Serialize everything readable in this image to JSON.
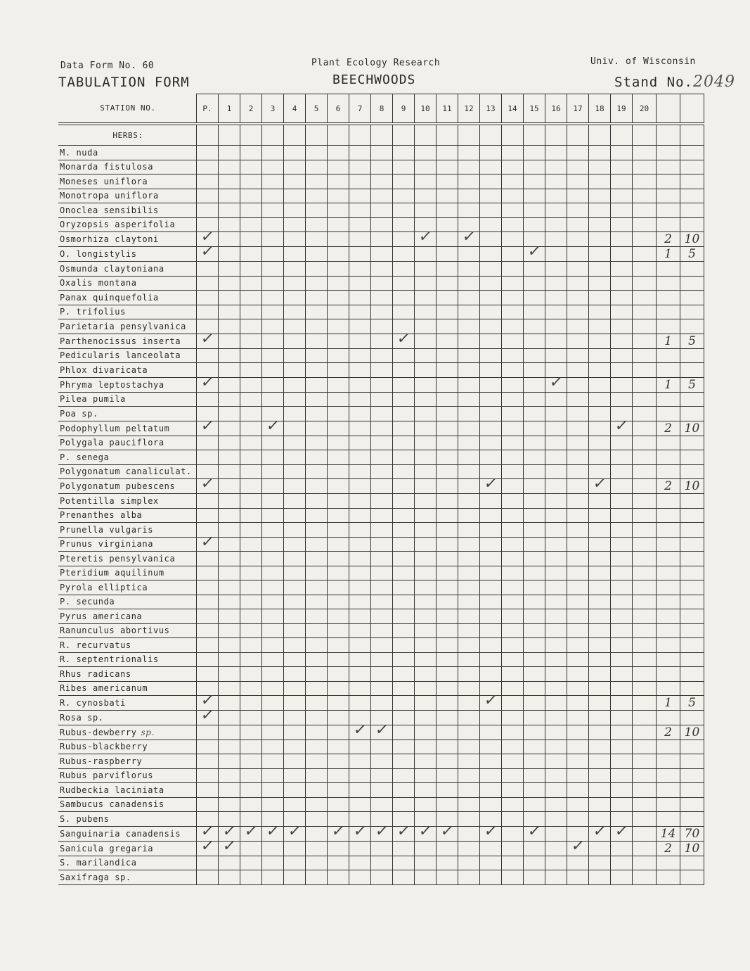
{
  "header": {
    "form_no": "Data Form No. 60",
    "form_title": "TABULATION FORM",
    "org": "Plant Ecology Research",
    "community": "BEECHWOODS",
    "university": "Univ. of Wisconsin",
    "stand_label": "Stand No.",
    "stand_no": "2049"
  },
  "table": {
    "station_label": "STATION NO.",
    "columns": [
      "P.",
      "1",
      "2",
      "3",
      "4",
      "5",
      "6",
      "7",
      "8",
      "9",
      "10",
      "11",
      "12",
      "13",
      "14",
      "15",
      "16",
      "17",
      "18",
      "19",
      "20",
      "",
      ""
    ],
    "section_label": "HERBS:",
    "check_glyph": "✓",
    "rows": [
      {
        "name": "M. nuda",
        "checks": []
      },
      {
        "name": "Monarda fistulosa",
        "checks": []
      },
      {
        "name": "Moneses uniflora",
        "checks": []
      },
      {
        "name": "Monotropa uniflora",
        "checks": []
      },
      {
        "name": "Onoclea sensibilis",
        "checks": []
      },
      {
        "name": "Oryzopsis asperifolia",
        "checks": []
      },
      {
        "name": "Osmorhiza claytoni",
        "checks": [
          "P.",
          "10",
          "12"
        ],
        "count": "2",
        "percent": "10"
      },
      {
        "name": "O. longistylis",
        "checks": [
          "P.",
          "15"
        ],
        "count": "1",
        "percent": "5"
      },
      {
        "name": "Osmunda claytoniana",
        "checks": []
      },
      {
        "name": "Oxalis montana",
        "checks": []
      },
      {
        "name": "Panax quinquefolia",
        "checks": []
      },
      {
        "name": "P. trifolius",
        "checks": []
      },
      {
        "name": "Parietaria pensylvanica",
        "checks": []
      },
      {
        "name": "Parthenocissus inserta",
        "checks": [
          "P.",
          "9"
        ],
        "count": "1",
        "percent": "5"
      },
      {
        "name": "Pedicularis lanceolata",
        "checks": []
      },
      {
        "name": "Phlox divaricata",
        "checks": []
      },
      {
        "name": "Phryma leptostachya",
        "checks": [
          "P.",
          "16"
        ],
        "count": "1",
        "percent": "5"
      },
      {
        "name": "Pilea pumila",
        "checks": []
      },
      {
        "name": "Poa sp.",
        "checks": []
      },
      {
        "name": "Podophyllum peltatum",
        "checks": [
          "P.",
          "3",
          "19"
        ],
        "count": "2",
        "percent": "10"
      },
      {
        "name": "Polygala pauciflora",
        "checks": []
      },
      {
        "name": "P. senega",
        "checks": []
      },
      {
        "name": "Polygonatum canaliculat.",
        "checks": []
      },
      {
        "name": "Polygonatum pubescens",
        "checks": [
          "P.",
          "13",
          "18"
        ],
        "count": "2",
        "percent": "10"
      },
      {
        "name": "Potentilla simplex",
        "checks": []
      },
      {
        "name": "Prenanthes alba",
        "checks": []
      },
      {
        "name": "Prunella vulgaris",
        "checks": []
      },
      {
        "name": "Prunus virginiana",
        "checks": [
          "P."
        ]
      },
      {
        "name": "Pteretis pensylvanica",
        "checks": []
      },
      {
        "name": "Pteridium aquilinum",
        "checks": []
      },
      {
        "name": "Pyrola elliptica",
        "checks": []
      },
      {
        "name": "P. secunda",
        "checks": []
      },
      {
        "name": "Pyrus americana",
        "checks": []
      },
      {
        "name": "Ranunculus abortivus",
        "checks": []
      },
      {
        "name": "R. recurvatus",
        "checks": []
      },
      {
        "name": "R. septentrionalis",
        "checks": []
      },
      {
        "name": "Rhus radicans",
        "checks": []
      },
      {
        "name": "Ribes americanum",
        "checks": []
      },
      {
        "name": "R. cynosbati",
        "checks": [
          "P.",
          "13"
        ],
        "count": "1",
        "percent": "5"
      },
      {
        "name": "Rosa sp.",
        "checks": [
          "P."
        ]
      },
      {
        "name": "Rubus-dewberry",
        "note": "sp.",
        "checks": [
          "7",
          "8"
        ],
        "count": "2",
        "percent": "10"
      },
      {
        "name": "Rubus-blackberry",
        "checks": []
      },
      {
        "name": "Rubus-raspberry",
        "checks": []
      },
      {
        "name": "Rubus parviflorus",
        "checks": []
      },
      {
        "name": "Rudbeckia laciniata",
        "checks": []
      },
      {
        "name": "Sambucus canadensis",
        "checks": []
      },
      {
        "name": "S. pubens",
        "checks": []
      },
      {
        "name": "Sanguinaria canadensis",
        "checks": [
          "P.",
          "1",
          "2",
          "3",
          "4",
          "6",
          "7",
          "8",
          "9",
          "10",
          "11",
          "13",
          "15",
          "18",
          "19"
        ],
        "count": "14",
        "percent": "70"
      },
      {
        "name": "Sanicula gregaria",
        "checks": [
          "P.",
          "1",
          "17"
        ],
        "count": "2",
        "percent": "10"
      },
      {
        "name": "S. marilandica",
        "checks": []
      },
      {
        "name": "Saxifraga sp.",
        "checks": []
      }
    ]
  }
}
